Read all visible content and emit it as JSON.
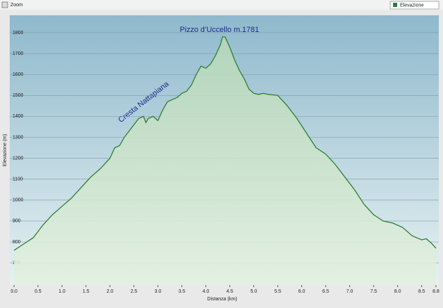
{
  "toolbar": {
    "zoom": "Zoom"
  },
  "chart_data": {
    "type": "area",
    "annotations": [
      "Pizzo d’Uccello m.1781",
      "Cresta Nattapiana"
    ],
    "xlabel": "Distanza  (km)",
    "ylabel": "Elevazione (m)",
    "x": [
      0,
      0.2,
      0.4,
      0.6,
      0.8,
      1.0,
      1.2,
      1.4,
      1.6,
      1.8,
      2.0,
      2.1,
      2.2,
      2.3,
      2.4,
      2.5,
      2.6,
      2.7,
      2.75,
      2.8,
      2.9,
      3.0,
      3.1,
      3.2,
      3.3,
      3.4,
      3.5,
      3.6,
      3.7,
      3.8,
      3.9,
      4.0,
      4.1,
      4.2,
      4.3,
      4.35,
      4.4,
      4.5,
      4.6,
      4.7,
      4.8,
      4.9,
      5.0,
      5.1,
      5.2,
      5.3,
      5.5,
      5.7,
      5.9,
      6.1,
      6.3,
      6.5,
      6.7,
      6.9,
      7.1,
      7.3,
      7.5,
      7.7,
      7.9,
      8.1,
      8.3,
      8.5,
      8.6,
      8.7,
      8.8
    ],
    "series": [
      {
        "name": "Elevazione",
        "color": "#2e7d32",
        "values": [
          760,
          790,
          820,
          880,
          930,
          970,
          1010,
          1060,
          1110,
          1150,
          1200,
          1250,
          1260,
          1300,
          1330,
          1360,
          1390,
          1400,
          1370,
          1390,
          1400,
          1380,
          1430,
          1470,
          1480,
          1490,
          1510,
          1520,
          1550,
          1600,
          1640,
          1630,
          1650,
          1690,
          1740,
          1780,
          1780,
          1730,
          1670,
          1620,
          1580,
          1530,
          1510,
          1505,
          1510,
          1505,
          1500,
          1450,
          1390,
          1320,
          1250,
          1220,
          1170,
          1110,
          1050,
          980,
          930,
          900,
          890,
          870,
          830,
          810,
          815,
          795,
          770
        ]
      }
    ],
    "xlim": [
      -0.09,
      8.86
    ],
    "ylim": [
      594,
      1883
    ],
    "xticks": [
      {
        "value": 0,
        "label": "0.0"
      },
      0.5,
      {
        "value": 1,
        "label": "1.0"
      },
      1.5,
      {
        "value": 2,
        "label": "2.0"
      },
      2.5,
      {
        "value": 3,
        "label": "3.0"
      },
      3.5,
      {
        "value": 4,
        "label": "4.0"
      },
      4.5,
      {
        "value": 5,
        "label": "5.0"
      },
      5.5,
      {
        "value": 6,
        "label": "6.0"
      },
      6.5,
      {
        "value": 7,
        "label": "7.0"
      },
      7.5,
      {
        "value": 8,
        "label": "8.0"
      },
      8.5,
      8.8
    ],
    "yticks": [
      700,
      800,
      900,
      1000,
      1100,
      1200,
      1300,
      1400,
      1500,
      1600,
      1700,
      1800
    ],
    "grid": true,
    "legend": "top-right"
  }
}
